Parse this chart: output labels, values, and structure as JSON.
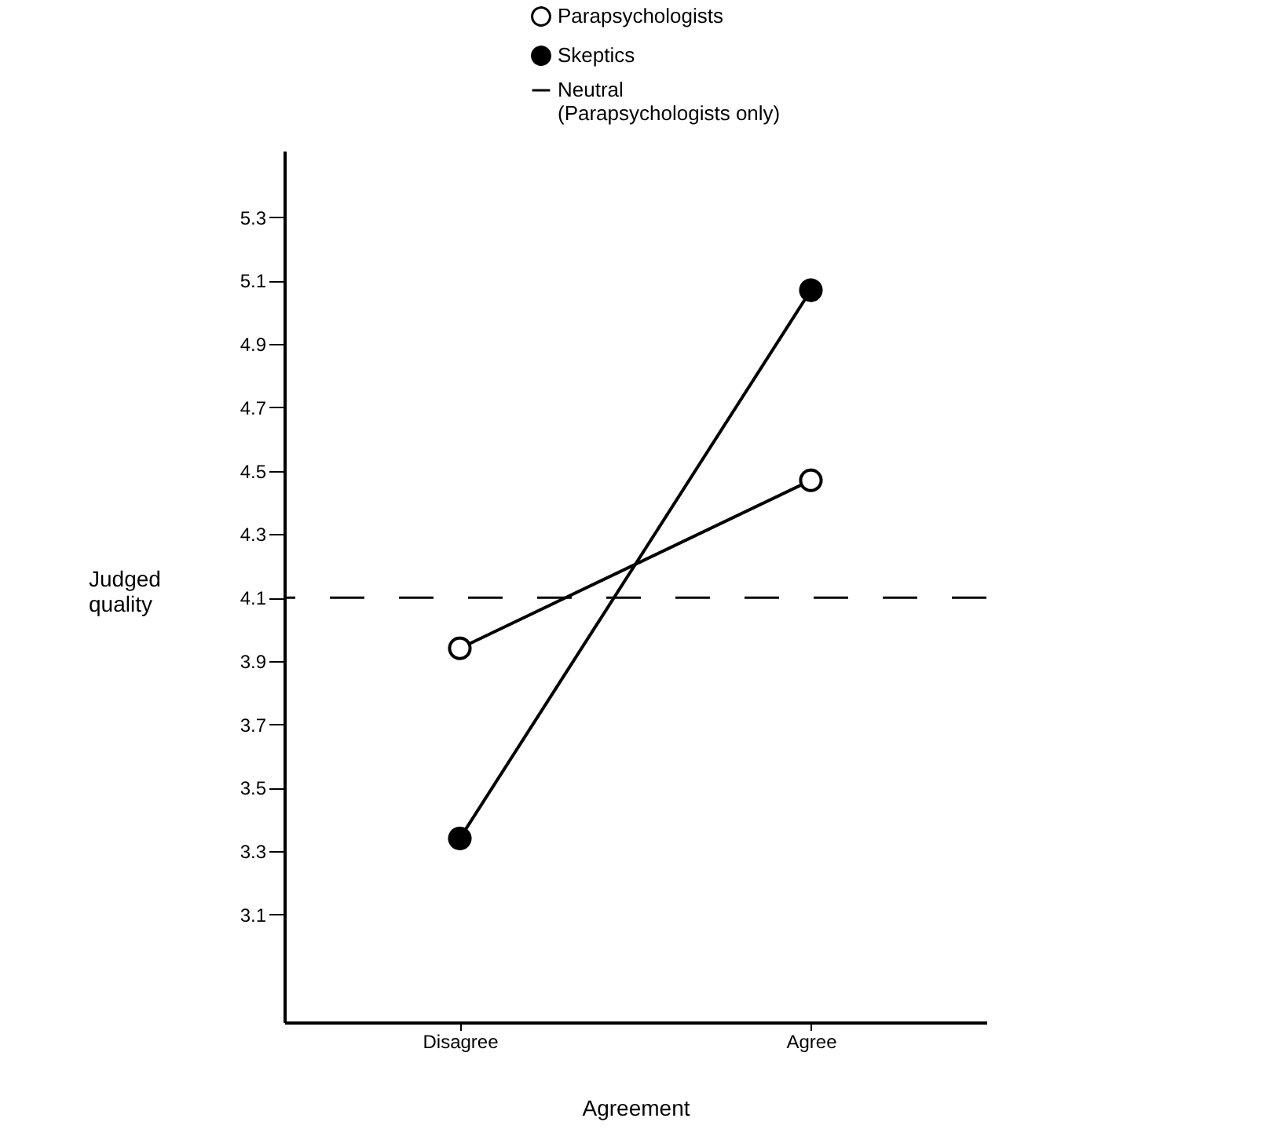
{
  "chart_data": {
    "type": "line",
    "xlabel": "Agreement",
    "ylabel": "Judged quality",
    "categories": [
      "Disagree",
      "Agree"
    ],
    "series": [
      {
        "name": "Parapsychologists",
        "color": "#000000",
        "colors": [
          "#ffffff",
          "#ffffff"
        ],
        "values": [
          3.94,
          4.47
        ]
      },
      {
        "name": "Skeptics",
        "color": "#000000",
        "values": [
          3.34,
          5.07
        ]
      }
    ],
    "ylim": [
      2.76,
      5.51
    ],
    "yticks": [
      3.1,
      3.3,
      3.5,
      3.7,
      3.9,
      4.1,
      4.3,
      4.5,
      4.7,
      4.9,
      5.1,
      5.3
    ],
    "ref_lines": [
      {
        "axis": "y",
        "value": 4.1,
        "label": "Neutral (Parapsychologists only)",
        "color": "#000000",
        "line_style": "dashed"
      }
    ],
    "marker": "circle",
    "line_style": "solid",
    "grid": false,
    "legend": "top right"
  }
}
